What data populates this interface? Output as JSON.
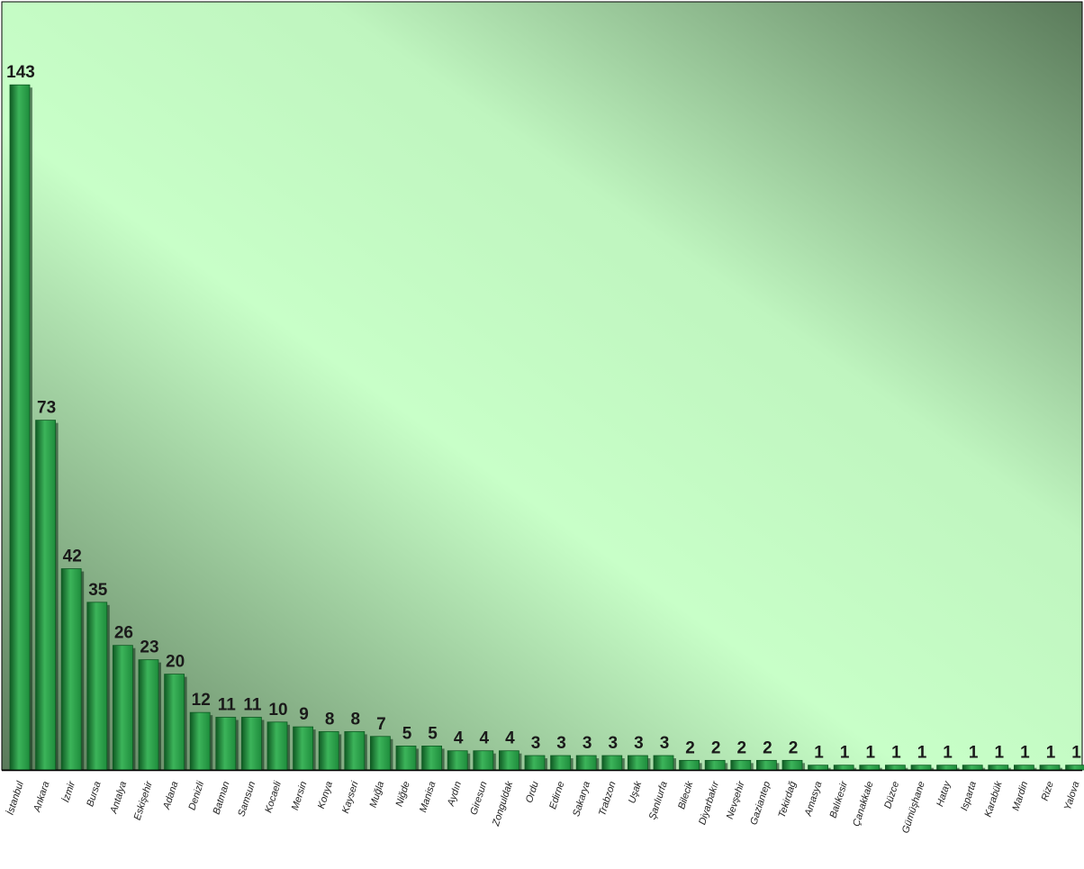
{
  "chart_data": {
    "type": "bar",
    "title": "",
    "xlabel": "",
    "ylabel": "",
    "ylim": [
      0,
      150
    ],
    "grid": false,
    "legend": "none",
    "colors": {
      "bar_light": "#3cb45a",
      "bar_mid": "#1e8c3c",
      "bar_dark": "#0f5a23",
      "bg_light": "#c8ffc8",
      "bg_dark": "#5a7a5a",
      "axis": "#000000"
    },
    "categories": [
      "İstanbul",
      "Ankara",
      "İzmir",
      "Bursa",
      "Antalya",
      "Eskişehir",
      "Adana",
      "Denizli",
      "Batman",
      "Samsun",
      "Kocaeli",
      "Mersin",
      "Konya",
      "Kayseri",
      "Muğla",
      "Niğde",
      "Manisa",
      "Aydın",
      "Giresun",
      "Zonguldak",
      "Ordu",
      "Edirne",
      "Sakarya",
      "Trabzon",
      "Uşak",
      "Şanlıurfa",
      "Bilecik",
      "Diyarbakır",
      "Nevşehir",
      "Gaziantep",
      "Tekirdağ",
      "Amasya",
      "Balıkesir",
      "Çanakkale",
      "Düzce",
      "Gümüşhane",
      "Hatay",
      "Isparta",
      "Karabük",
      "Mardin",
      "Rize",
      "Yalova"
    ],
    "values": [
      143,
      73,
      42,
      35,
      26,
      23,
      20,
      12,
      11,
      11,
      10,
      9,
      8,
      8,
      7,
      5,
      5,
      4,
      4,
      4,
      3,
      3,
      3,
      3,
      3,
      3,
      2,
      2,
      2,
      2,
      2,
      1,
      1,
      1,
      1,
      1,
      1,
      1,
      1,
      1,
      1,
      1
    ]
  }
}
